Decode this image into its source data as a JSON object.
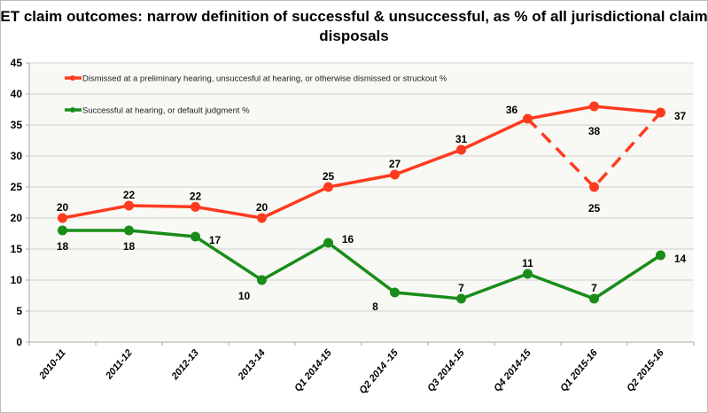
{
  "chart_data": {
    "type": "line",
    "title": "ET claim outcomes: narrow definition of successful & unsuccessful, as % of all jurisdictional claim disposals",
    "categories": [
      "2010-11",
      "2011-12",
      "2012-13",
      "2013-14",
      "Q1 2014-15",
      "Q2 2014 -15",
      "Q3 2014-15",
      "Q4 2014-15",
      "Q1 2015-16",
      "Q2 2015-16"
    ],
    "ylim": [
      0,
      45
    ],
    "yticks": [
      0,
      5,
      10,
      15,
      20,
      25,
      30,
      35,
      40,
      45
    ],
    "grid": true,
    "legend": "top-left",
    "series": [
      {
        "name": "Dismissed at a preliminary hearing, unsuccesful at hearing, or otherwise dismissed or struckout %",
        "color": "#ff3b1f",
        "values": [
          20,
          22,
          21.8,
          20,
          25,
          27,
          31,
          36,
          38,
          37
        ],
        "labels": [
          "20",
          "22",
          "22",
          "20",
          "25",
          "27",
          "31",
          "36",
          "38",
          "37"
        ],
        "alt_path": {
          "style": "dashed",
          "points": [
            {
              "category": "Q4 2014-15",
              "value": 36
            },
            {
              "category": "Q1 2015-16",
              "value": 25,
              "label": "25"
            },
            {
              "category": "Q2 2015-16",
              "value": 37
            }
          ]
        }
      },
      {
        "name": "Successful at hearing, or default judgment %",
        "color": "#1a8c1a",
        "values": [
          18,
          18,
          17,
          10,
          16,
          8,
          7,
          11,
          7,
          14
        ],
        "labels": [
          "18",
          "18",
          "17",
          "10",
          "16",
          "8",
          "7",
          "11",
          "7",
          "14"
        ]
      }
    ]
  }
}
